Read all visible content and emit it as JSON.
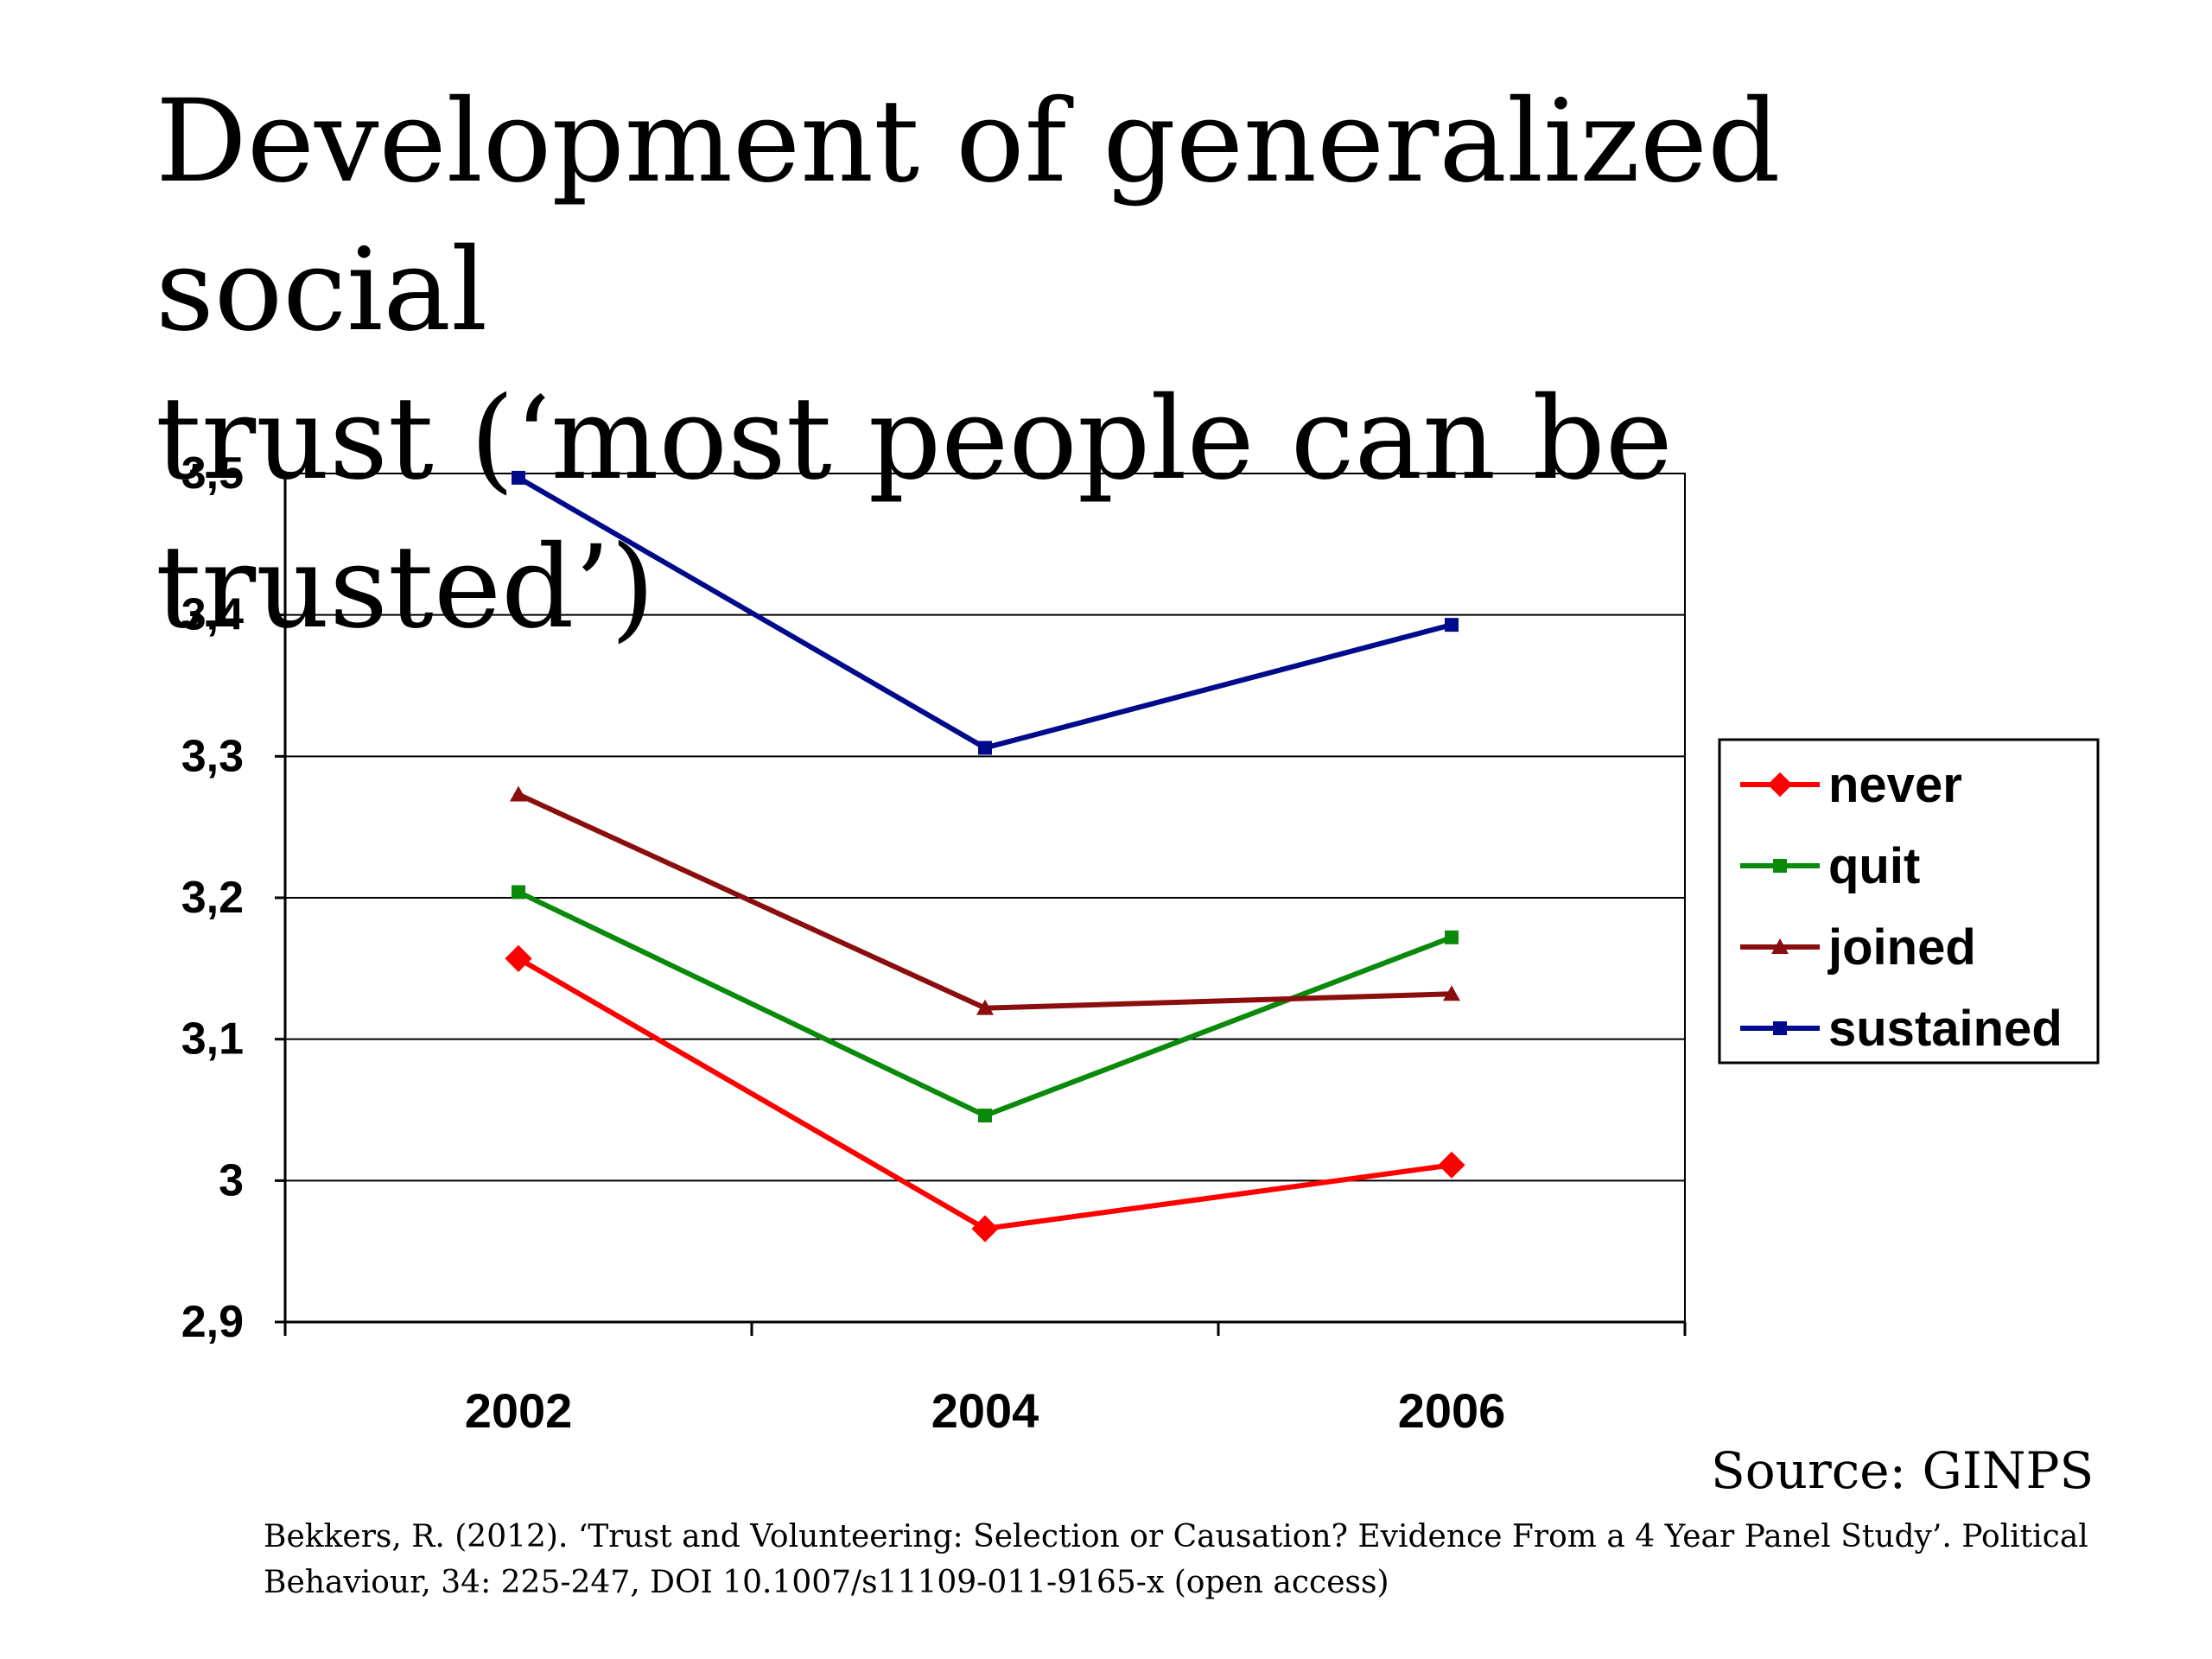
{
  "slide": {
    "title_line1": "Development of generalized social",
    "title_line2": "trust (‘most people can be trusted’)",
    "source": "Source: GINPS",
    "citation_line1": "Bekkers, R. (2012). ‘Trust and Volunteering: Selection or Causation? Evidence From a 4 Year Panel Study’. Political",
    "citation_line2": "Behaviour, 34: 225-247, DOI 10.1007/s11109-011-9165-x (open access)"
  },
  "chart_data": {
    "type": "line",
    "title": "",
    "xlabel": "",
    "ylabel": "",
    "categories": [
      "2002",
      "2004",
      "2006"
    ],
    "ylim": [
      2.9,
      3.5
    ],
    "yticks": [
      "2,9",
      "3",
      "3,1",
      "3,2",
      "3,3",
      "3,4",
      "3,5"
    ],
    "grid": true,
    "legend_position": "right",
    "series": [
      {
        "name": "never",
        "values": [
          3.157,
          2.966,
          3.011
        ],
        "color": "#ff0000",
        "marker": "diamond"
      },
      {
        "name": "quit",
        "values": [
          3.204,
          3.046,
          3.172
        ],
        "color": "#0a8a0a",
        "marker": "square"
      },
      {
        "name": "joined",
        "values": [
          3.273,
          3.122,
          3.132
        ],
        "color": "#8b0e0e",
        "marker": "triangle"
      },
      {
        "name": "sustained",
        "values": [
          3.497,
          3.306,
          3.393
        ],
        "color": "#000a8a",
        "marker": "square"
      }
    ]
  }
}
